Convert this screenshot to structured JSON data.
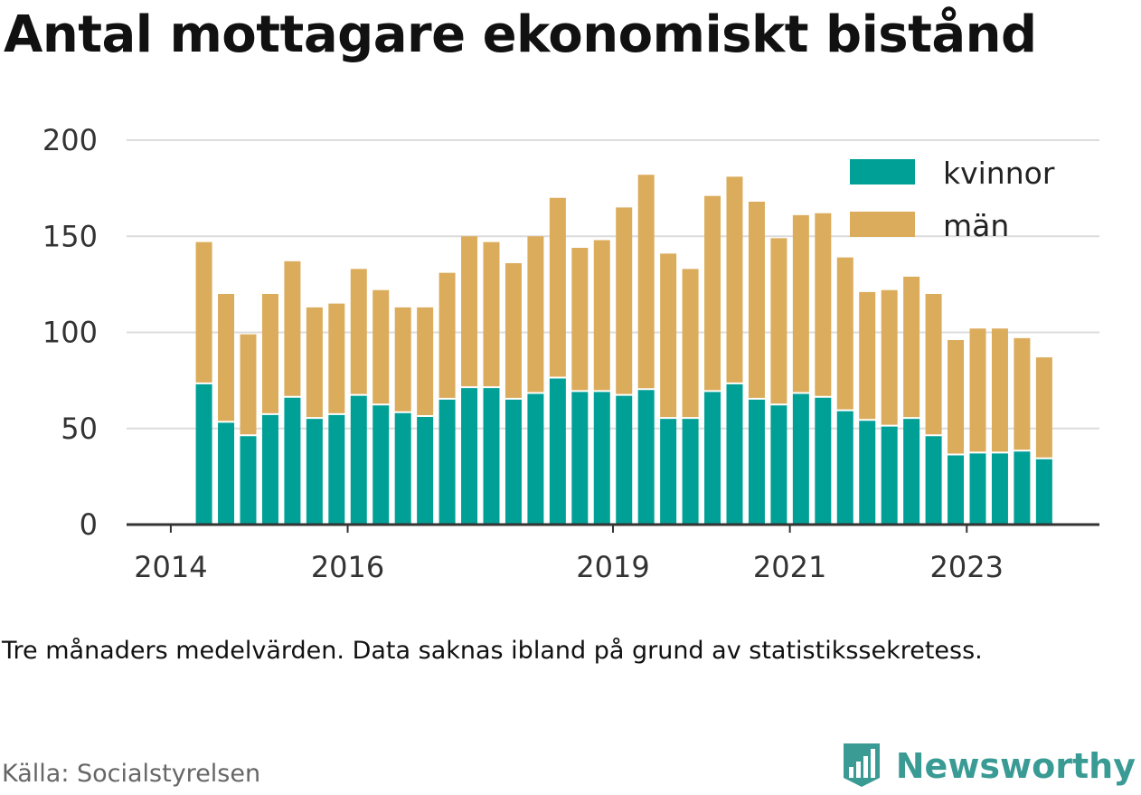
{
  "title": "Antal mottagare ekonomiskt bistånd",
  "note": "Tre månaders medelvärden. Data saknas ibland på grund av statistikssekretess.",
  "source": "Källa: Socialstyrelsen",
  "brand": {
    "name": "Newsworthy",
    "icon": "newsworthy-logo-icon",
    "color": "#3a9b95"
  },
  "chart_data": {
    "type": "bar",
    "stacked": true,
    "ylim": [
      0,
      200
    ],
    "yticks": [
      0,
      50,
      100,
      150,
      200
    ],
    "grid": true,
    "legend_position": "top-right",
    "x_tick_labels": [
      "2014",
      "2016",
      "2019",
      "2021",
      "2023"
    ],
    "x_tick_positions": [
      2014,
      2016,
      2019,
      2021,
      2023
    ],
    "x_domain": [
      2013.5,
      2024.5
    ],
    "x": [
      2014.375,
      2014.625,
      2014.875,
      2015.125,
      2015.375,
      2015.625,
      2015.875,
      2016.125,
      2016.375,
      2016.625,
      2016.875,
      2017.125,
      2017.375,
      2017.625,
      2017.875,
      2018.125,
      2018.375,
      2018.625,
      2018.875,
      2019.125,
      2019.375,
      2019.625,
      2019.875,
      2020.125,
      2020.375,
      2020.625,
      2020.875,
      2021.125,
      2021.375,
      2021.625,
      2021.875,
      2022.125,
      2022.375,
      2022.625,
      2022.875,
      2023.125,
      2023.375,
      2023.625,
      2023.875
    ],
    "series": [
      {
        "name": "kvinnor",
        "color": "#00a096",
        "values": [
          73,
          53,
          46,
          57,
          66,
          55,
          57,
          67,
          62,
          58,
          56,
          65,
          71,
          71,
          65,
          68,
          76,
          69,
          69,
          67,
          70,
          55,
          55,
          69,
          73,
          65,
          62,
          68,
          66,
          59,
          54,
          51,
          55,
          46,
          36,
          37,
          37,
          38,
          34
        ]
      },
      {
        "name": "män",
        "color": "#dbac5b",
        "values": [
          74,
          67,
          53,
          63,
          71,
          58,
          58,
          66,
          60,
          55,
          57,
          66,
          79,
          76,
          71,
          82,
          94,
          75,
          79,
          98,
          112,
          86,
          78,
          102,
          108,
          103,
          87,
          93,
          96,
          80,
          67,
          71,
          74,
          74,
          60,
          65,
          65,
          59,
          53
        ]
      }
    ]
  }
}
